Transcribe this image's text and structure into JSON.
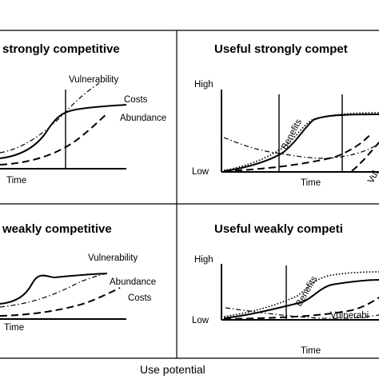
{
  "panels": {
    "top_left": {
      "title": "strongly competitive",
      "labels": {
        "vulnerability": "Vulnerability",
        "costs": "Costs",
        "abundance": "Abundance"
      },
      "x_axis": "Time"
    },
    "top_right": {
      "title": "Useful strongly compet",
      "labels": {
        "benefits": "Benefits",
        "vulnerability_partial": "Vul"
      },
      "y_high": "High",
      "y_low": "Low",
      "x_axis": "Time"
    },
    "bottom_left": {
      "title": "weakly competitive",
      "labels": {
        "vulnerability": "Vulnerability",
        "abundance": "Abundance",
        "costs": "Costs"
      },
      "x_axis": "Time"
    },
    "bottom_right": {
      "title": "Useful weakly competi",
      "labels": {
        "benefits": "Benefits",
        "vulnerability_partial": "Vulnerabi"
      },
      "y_high": "High",
      "y_low": "Low",
      "x_axis": "Time"
    }
  },
  "caption": "Use potential"
}
